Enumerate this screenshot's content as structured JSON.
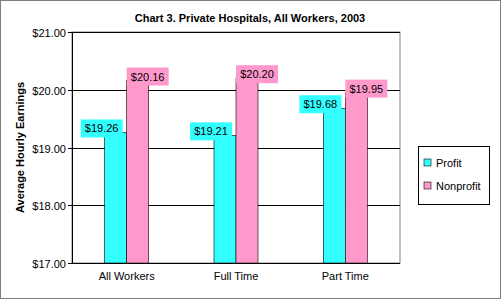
{
  "chart_data": {
    "type": "bar",
    "title": "Chart 3. Private Hospitals, All Workers, 2003",
    "y_label": "Average Hourly Earnings",
    "categories": [
      "All Workers",
      "Full Time",
      "Part Time"
    ],
    "series": [
      {
        "name": "Profit",
        "color": "#33FFFF",
        "values": [
          19.26,
          19.21,
          19.68
        ],
        "value_labels": [
          "$19.26",
          "$19.21",
          "$19.68"
        ]
      },
      {
        "name": "Nonprofit",
        "color": "#FF99CC",
        "values": [
          20.16,
          20.2,
          19.95
        ],
        "value_labels": [
          "$20.16",
          "$20.20",
          "$19.95"
        ]
      }
    ],
    "ylim": [
      17,
      21
    ],
    "yticks": [
      {
        "value": 17,
        "label": "$17.00"
      },
      {
        "value": 18,
        "label": "$18.00"
      },
      {
        "value": 19,
        "label": "$19.00"
      },
      {
        "value": 20,
        "label": "$20.00"
      },
      {
        "value": 21,
        "label": "$21.00"
      }
    ],
    "grid": true,
    "legend": "right",
    "data_labels": true
  }
}
